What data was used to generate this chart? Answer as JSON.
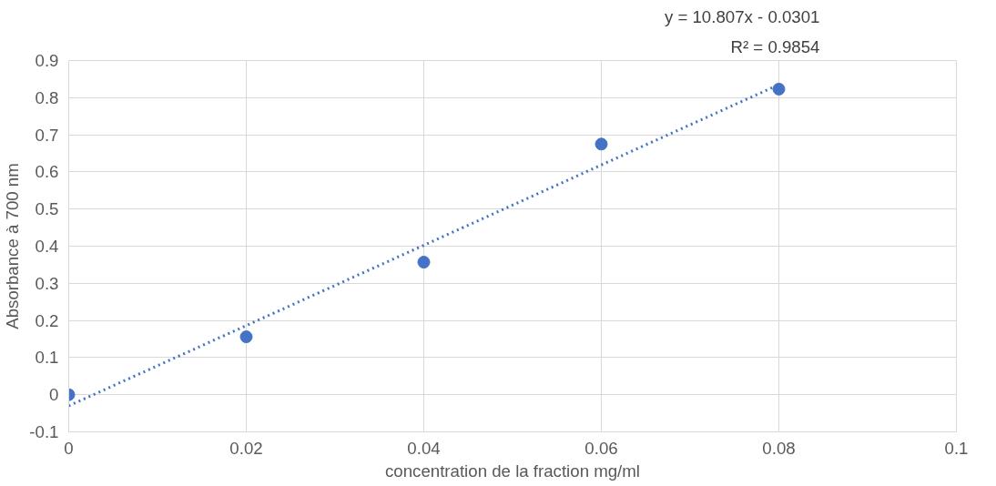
{
  "chart_data": {
    "type": "scatter",
    "xlabel": "concentration de la fraction mg/ml",
    "ylabel": "Absorbance à 700 nm",
    "annotations": [
      "y = 10.807x - 0.0301",
      "R² = 0.9854"
    ],
    "series": [
      {
        "color": "#4472c4",
        "x": [
          0,
          0.02,
          0.04,
          0.06,
          0.08
        ],
        "values": [
          0,
          0.156,
          0.357,
          0.675,
          0.823
        ],
        "marker": "circle"
      },
      {
        "type": "line",
        "color": "#4472c4",
        "x": [
          0,
          0.08
        ],
        "values": [
          -0.03,
          0.835
        ],
        "line_style": "dotted"
      }
    ],
    "xlim": [
      0,
      0.1
    ],
    "xticks": [
      {
        "value": 0,
        "label": "0"
      },
      0.02,
      0.04,
      0.06,
      0.08,
      {
        "value": 0.1,
        "label": "0.1"
      }
    ],
    "ylim": [
      -0.1,
      0.9
    ],
    "yticks": [
      -0.1,
      {
        "value": 0,
        "label": "0"
      },
      0.1,
      0.2,
      0.3,
      0.4,
      0.5,
      0.6,
      0.7,
      0.8,
      0.9
    ],
    "grid": true
  }
}
